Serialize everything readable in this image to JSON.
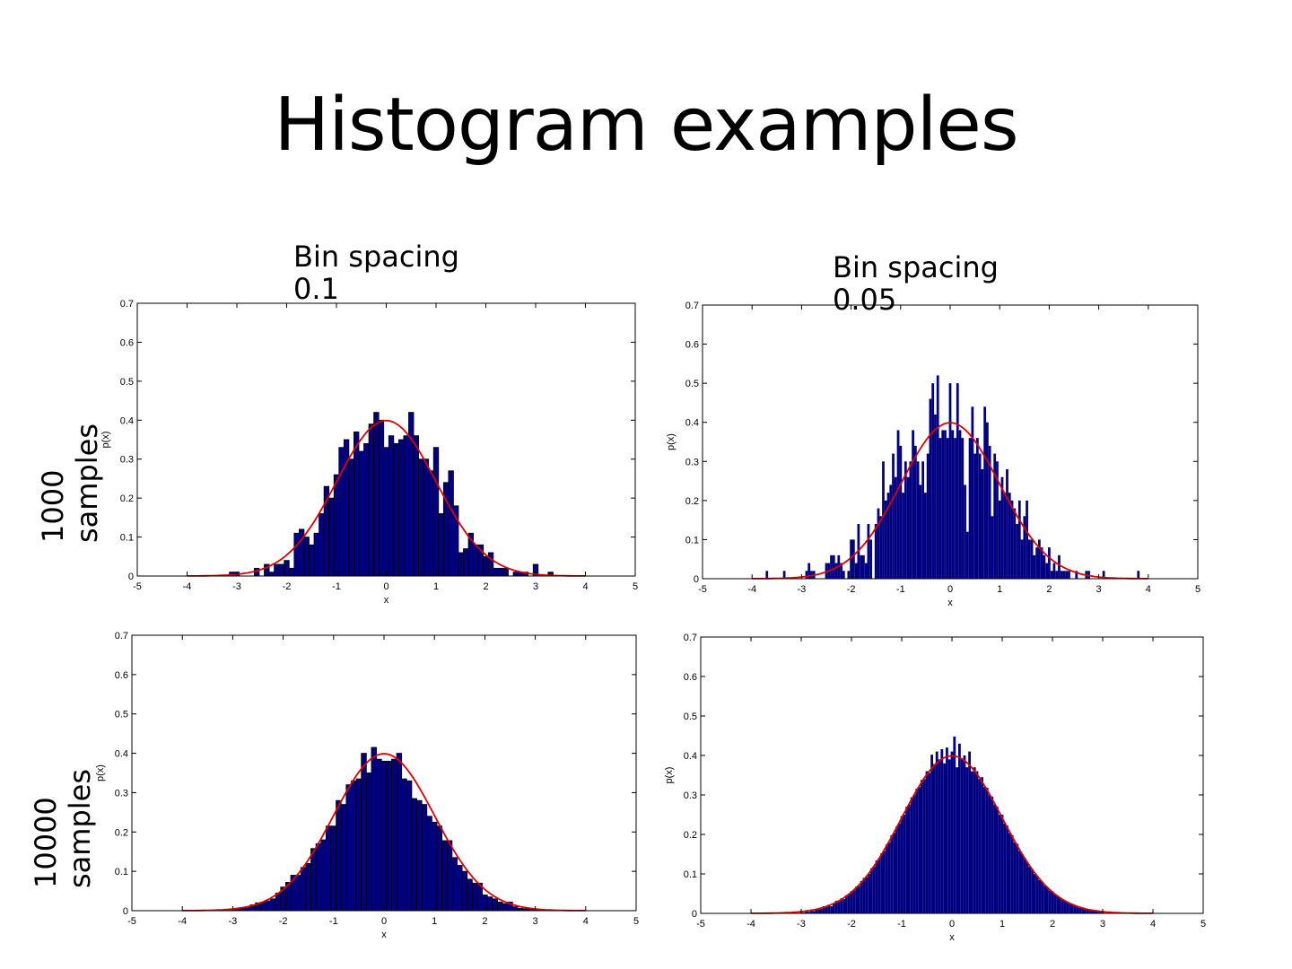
{
  "slide": {
    "title": "Histogram examples",
    "col_labels": [
      "Bin spacing 0.1",
      "Bin spacing 0.05"
    ],
    "row_labels": [
      [
        "1000",
        "samples"
      ],
      [
        "10000",
        "samples"
      ]
    ]
  },
  "colors": {
    "bar_fill": "#000080",
    "bar_edge": "#000000",
    "curve": "#e00000",
    "axis": "#000000"
  },
  "chart_data": [
    {
      "type": "bar",
      "id": "hist-1000-bin-0.1",
      "samples": 1000,
      "bin_width": 0.1,
      "bar_edges": true,
      "xlabel": "x",
      "ylabel": "p(x)",
      "xlim": [
        -5,
        5
      ],
      "ylim": [
        0,
        0.7
      ],
      "xticks": [
        "-5",
        "-4",
        "-3",
        "-2",
        "-1",
        "0",
        "1",
        "2",
        "3",
        "4",
        "5"
      ],
      "yticks": [
        "0",
        "0.1",
        "0.2",
        "0.3",
        "0.4",
        "0.5",
        "0.6",
        "0.7"
      ],
      "bin_start": -3.1,
      "values": [
        0.01,
        0.01,
        0,
        0,
        0,
        0.02,
        0,
        0.03,
        0.01,
        0.03,
        0.03,
        0.04,
        0.02,
        0.11,
        0.12,
        0.1,
        0.08,
        0.11,
        0.16,
        0.23,
        0.2,
        0.26,
        0.33,
        0.35,
        0.3,
        0.37,
        0.32,
        0.34,
        0.39,
        0.42,
        0.4,
        0.33,
        0.36,
        0.34,
        0.35,
        0.36,
        0.42,
        0.36,
        0.3,
        0.3,
        0.27,
        0.33,
        0.16,
        0.24,
        0.27,
        0.18,
        0.06,
        0.07,
        0.11,
        0.08,
        0.08,
        0.05,
        0.06,
        0.02,
        0.02,
        0.02,
        0,
        0.01,
        0.01,
        0.01,
        0,
        0.03,
        0,
        0,
        0.01
      ],
      "curve": {
        "name": "normal pdf",
        "mean": 0,
        "std": 1,
        "range": [
          -4,
          4
        ]
      }
    },
    {
      "type": "bar",
      "id": "hist-1000-bin-0.05",
      "samples": 1000,
      "bin_width": 0.05,
      "bar_edges": false,
      "xlabel": "x",
      "ylabel": "p(x)",
      "xlim": [
        -5,
        5
      ],
      "ylim": [
        0,
        0.7
      ],
      "xticks": [
        "-5",
        "-4",
        "-3",
        "-2",
        "-1",
        "0",
        "1",
        "2",
        "3",
        "4",
        "5"
      ],
      "yticks": [
        "0",
        "0.1",
        "0.2",
        "0.3",
        "0.4",
        "0.5",
        "0.6",
        "0.7"
      ],
      "bin_start": -2.5,
      "values": [
        0.04,
        0.04,
        0.06,
        0.06,
        0.04,
        0.06,
        0.04,
        0.02,
        0,
        0.02,
        0.1,
        0.1,
        0.04,
        0.14,
        0.06,
        0.06,
        0.04,
        0.14,
        0.1,
        0,
        0.14,
        0.18,
        0.16,
        0.3,
        0.2,
        0.22,
        0.24,
        0.32,
        0.26,
        0.38,
        0.34,
        0.22,
        0.3,
        0.26,
        0.3,
        0.38,
        0.34,
        0.3,
        0.24,
        0.3,
        0.22,
        0.32,
        0.46,
        0.5,
        0.42,
        0.52,
        0.36,
        0.38,
        0.38,
        0.36,
        0.5,
        0.38,
        0.36,
        0.5,
        0.38,
        0.36,
        0.24,
        0.12,
        0.36,
        0.44,
        0.32,
        0.36,
        0.32,
        0.28,
        0.44,
        0.4,
        0.34,
        0.16,
        0.32,
        0.3,
        0.2,
        0.26,
        0.22,
        0.28,
        0.22,
        0.2,
        0.18,
        0.14,
        0.2,
        0.1,
        0.16,
        0.2,
        0.1,
        0.1,
        0.06,
        0.08,
        0.1,
        0.08,
        0.06,
        0.04,
        0.08,
        0.02,
        0.04,
        0.02,
        0.06,
        0.02,
        0.02,
        0.02,
        0.02
      ],
      "extra_bars": [
        [
          -3.7,
          0.02
        ],
        [
          -3.35,
          0.02
        ],
        [
          -2.9,
          0.02
        ],
        [
          -2.85,
          0.04
        ],
        [
          -2.8,
          0.02
        ],
        [
          -2.75,
          0.02
        ],
        [
          2.55,
          0.02
        ],
        [
          2.75,
          0.02
        ],
        [
          2.8,
          0.02
        ],
        [
          3.1,
          0.02
        ],
        [
          3.8,
          0.02
        ]
      ],
      "curve": {
        "name": "normal pdf",
        "mean": 0,
        "std": 1,
        "range": [
          -4,
          4
        ]
      }
    },
    {
      "type": "bar",
      "id": "hist-10000-bin-0.1",
      "samples": 10000,
      "bin_width": 0.1,
      "bar_edges": true,
      "xlabel": "x",
      "ylabel": "p(x)",
      "xlim": [
        -5,
        5
      ],
      "ylim": [
        0,
        0.7
      ],
      "xticks": [
        "-5",
        "-4",
        "-3",
        "-2",
        "-1",
        "0",
        "1",
        "2",
        "3",
        "4",
        "5"
      ],
      "yticks": [
        "0",
        "0.1",
        "0.2",
        "0.3",
        "0.4",
        "0.5",
        "0.6",
        "0.7"
      ],
      "bin_start": -3.2,
      "values": [
        0.002,
        0.003,
        0.004,
        0.006,
        0.008,
        0.01,
        0.015,
        0.02,
        0.022,
        0.025,
        0.03,
        0.045,
        0.06,
        0.072,
        0.09,
        0.09,
        0.11,
        0.12,
        0.158,
        0.17,
        0.18,
        0.215,
        0.215,
        0.28,
        0.27,
        0.32,
        0.33,
        0.335,
        0.4,
        0.35,
        0.415,
        0.385,
        0.38,
        0.38,
        0.385,
        0.4,
        0.335,
        0.33,
        0.285,
        0.28,
        0.27,
        0.24,
        0.225,
        0.215,
        0.178,
        0.178,
        0.135,
        0.115,
        0.1,
        0.08,
        0.07,
        0.07,
        0.04,
        0.035,
        0.03,
        0.022,
        0.018,
        0.022,
        0.01,
        0.006,
        0.005,
        0.004,
        0.003,
        0.002,
        0.001
      ],
      "curve": {
        "name": "normal pdf",
        "mean": 0,
        "std": 1,
        "range": [
          -4,
          4
        ]
      }
    },
    {
      "type": "bar",
      "id": "hist-10000-bin-0.05",
      "samples": 10000,
      "bin_width": 0.05,
      "bar_edges": false,
      "xlabel": "x",
      "ylabel": "p(x)",
      "xlim": [
        -5,
        5
      ],
      "ylim": [
        0,
        0.7
      ],
      "xticks": [
        "-5",
        "-4",
        "-3",
        "-2",
        "-1",
        "0",
        "1",
        "2",
        "3",
        "4",
        "5"
      ],
      "yticks": [
        "0",
        "0.1",
        "0.2",
        "0.3",
        "0.4",
        "0.5",
        "0.6",
        "0.7"
      ],
      "bin_start": -3.0,
      "values": [
        0.004,
        0.002,
        0.006,
        0.004,
        0.01,
        0.006,
        0.012,
        0.01,
        0.012,
        0.018,
        0.016,
        0.022,
        0.018,
        0.026,
        0.032,
        0.03,
        0.038,
        0.036,
        0.046,
        0.05,
        0.056,
        0.058,
        0.068,
        0.07,
        0.082,
        0.09,
        0.092,
        0.1,
        0.114,
        0.118,
        0.134,
        0.138,
        0.152,
        0.158,
        0.174,
        0.18,
        0.198,
        0.204,
        0.22,
        0.228,
        0.246,
        0.25,
        0.27,
        0.276,
        0.294,
        0.3,
        0.316,
        0.32,
        0.338,
        0.34,
        0.36,
        0.356,
        0.402,
        0.378,
        0.41,
        0.39,
        0.416,
        0.38,
        0.42,
        0.39,
        0.41,
        0.448,
        0.37,
        0.43,
        0.39,
        0.4,
        0.37,
        0.41,
        0.36,
        0.37,
        0.36,
        0.34,
        0.345,
        0.32,
        0.318,
        0.3,
        0.296,
        0.276,
        0.27,
        0.25,
        0.25,
        0.228,
        0.222,
        0.204,
        0.198,
        0.18,
        0.176,
        0.158,
        0.15,
        0.14,
        0.13,
        0.118,
        0.112,
        0.1,
        0.094,
        0.084,
        0.08,
        0.07,
        0.066,
        0.058,
        0.056,
        0.048,
        0.044,
        0.04,
        0.034,
        0.032,
        0.028,
        0.024,
        0.022,
        0.02,
        0.016,
        0.014,
        0.014,
        0.01,
        0.01,
        0.008,
        0.008,
        0.006,
        0.006,
        0.004,
        0.004
      ],
      "curve": {
        "name": "normal pdf",
        "mean": 0,
        "std": 1,
        "range": [
          -4,
          4
        ]
      }
    }
  ]
}
